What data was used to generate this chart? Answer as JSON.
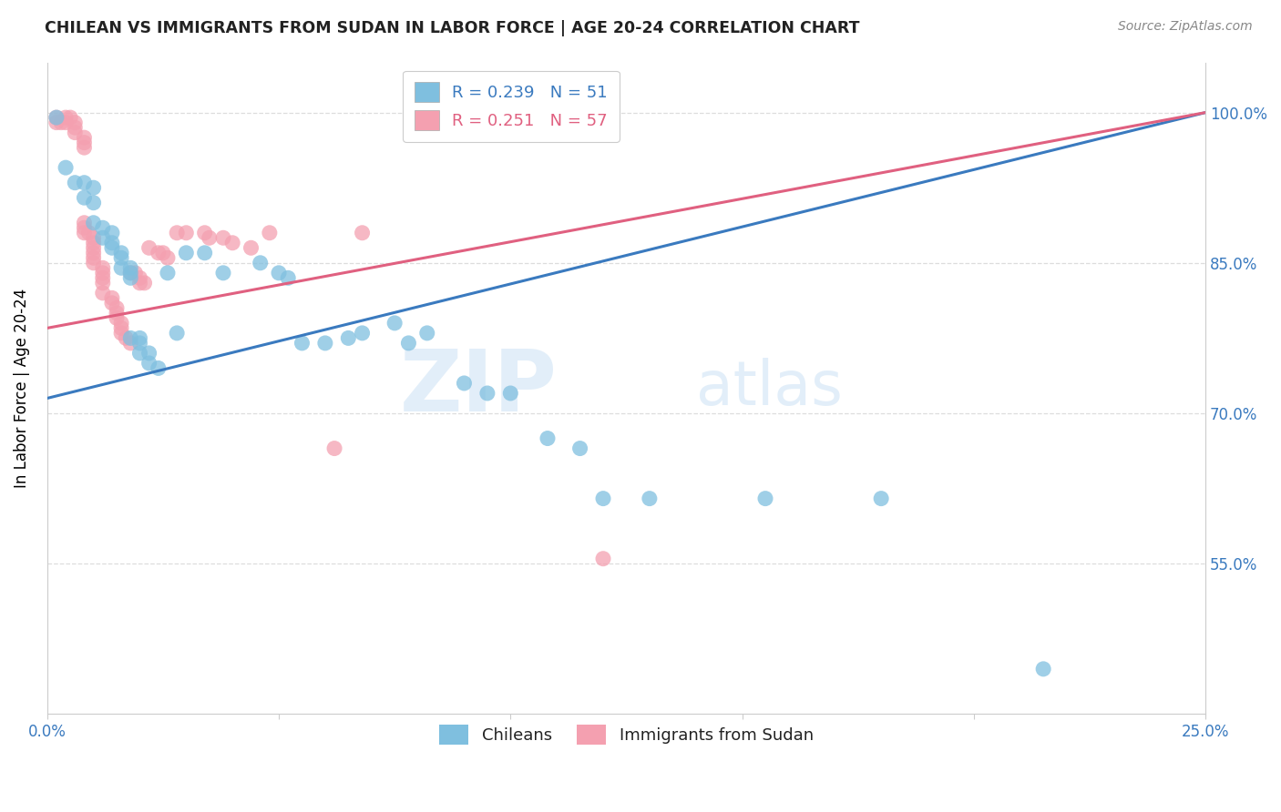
{
  "title": "CHILEAN VS IMMIGRANTS FROM SUDAN IN LABOR FORCE | AGE 20-24 CORRELATION CHART",
  "source": "Source: ZipAtlas.com",
  "ylabel": "In Labor Force | Age 20-24",
  "xlim": [
    0.0,
    0.25
  ],
  "ylim": [
    0.4,
    1.05
  ],
  "xticks": [
    0.0,
    0.05,
    0.1,
    0.15,
    0.2,
    0.25
  ],
  "yticks": [
    0.55,
    0.7,
    0.85,
    1.0
  ],
  "xticklabels": [
    "0.0%",
    "",
    "",
    "",
    "",
    "25.0%"
  ],
  "yticklabels": [
    "55.0%",
    "70.0%",
    "85.0%",
    "100.0%"
  ],
  "blue_color": "#7fbfdf",
  "pink_color": "#f4a0b0",
  "blue_line_color": "#3a7abf",
  "pink_line_color": "#e06080",
  "legend_blue_R": "0.239",
  "legend_blue_N": "51",
  "legend_pink_R": "0.251",
  "legend_pink_N": "57",
  "watermark_zip": "ZIP",
  "watermark_atlas": "atlas",
  "blue_line_x0": 0.0,
  "blue_line_y0": 0.715,
  "blue_line_x1": 0.25,
  "blue_line_y1": 1.0,
  "pink_line_x0": 0.0,
  "pink_line_y0": 0.785,
  "pink_line_x1": 0.25,
  "pink_line_y1": 1.0,
  "blue_scatter_x": [
    0.002,
    0.004,
    0.006,
    0.008,
    0.008,
    0.01,
    0.01,
    0.01,
    0.012,
    0.012,
    0.014,
    0.014,
    0.014,
    0.016,
    0.016,
    0.016,
    0.018,
    0.018,
    0.018,
    0.018,
    0.02,
    0.02,
    0.02,
    0.022,
    0.022,
    0.024,
    0.026,
    0.028,
    0.03,
    0.034,
    0.038,
    0.046,
    0.05,
    0.052,
    0.055,
    0.06,
    0.065,
    0.068,
    0.075,
    0.078,
    0.082,
    0.09,
    0.095,
    0.1,
    0.108,
    0.115,
    0.12,
    0.13,
    0.155,
    0.18,
    0.215
  ],
  "blue_scatter_y": [
    0.995,
    0.945,
    0.93,
    0.93,
    0.915,
    0.925,
    0.91,
    0.89,
    0.885,
    0.875,
    0.88,
    0.87,
    0.865,
    0.86,
    0.855,
    0.845,
    0.845,
    0.84,
    0.835,
    0.775,
    0.775,
    0.77,
    0.76,
    0.76,
    0.75,
    0.745,
    0.84,
    0.78,
    0.86,
    0.86,
    0.84,
    0.85,
    0.84,
    0.835,
    0.77,
    0.77,
    0.775,
    0.78,
    0.79,
    0.77,
    0.78,
    0.73,
    0.72,
    0.72,
    0.675,
    0.665,
    0.615,
    0.615,
    0.615,
    0.615,
    0.445
  ],
  "pink_scatter_x": [
    0.002,
    0.002,
    0.003,
    0.004,
    0.004,
    0.005,
    0.006,
    0.006,
    0.006,
    0.008,
    0.008,
    0.008,
    0.008,
    0.008,
    0.008,
    0.009,
    0.01,
    0.01,
    0.01,
    0.01,
    0.01,
    0.01,
    0.012,
    0.012,
    0.012,
    0.012,
    0.012,
    0.014,
    0.014,
    0.015,
    0.015,
    0.015,
    0.016,
    0.016,
    0.016,
    0.017,
    0.018,
    0.018,
    0.019,
    0.02,
    0.02,
    0.021,
    0.022,
    0.024,
    0.025,
    0.026,
    0.028,
    0.03,
    0.034,
    0.035,
    0.038,
    0.04,
    0.044,
    0.048,
    0.062,
    0.068,
    0.12
  ],
  "pink_scatter_y": [
    0.995,
    0.99,
    0.99,
    0.995,
    0.99,
    0.995,
    0.99,
    0.985,
    0.98,
    0.975,
    0.97,
    0.965,
    0.89,
    0.885,
    0.88,
    0.88,
    0.875,
    0.87,
    0.865,
    0.86,
    0.855,
    0.85,
    0.845,
    0.84,
    0.835,
    0.83,
    0.82,
    0.815,
    0.81,
    0.805,
    0.8,
    0.795,
    0.79,
    0.785,
    0.78,
    0.775,
    0.77,
    0.84,
    0.84,
    0.835,
    0.83,
    0.83,
    0.865,
    0.86,
    0.86,
    0.855,
    0.88,
    0.88,
    0.88,
    0.875,
    0.875,
    0.87,
    0.865,
    0.88,
    0.665,
    0.88,
    0.555
  ]
}
